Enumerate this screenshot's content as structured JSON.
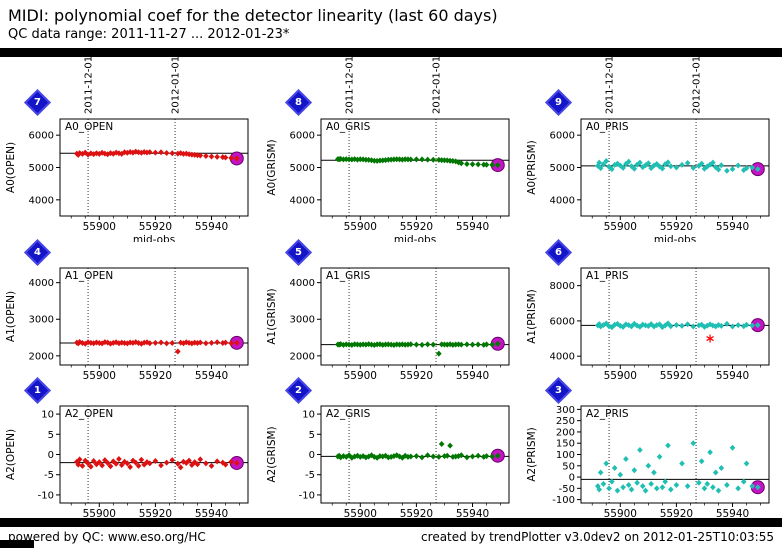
{
  "header": {
    "title": "MIDI: polynomial coef for the detector linearity (last 60 days)",
    "subtitle": "QC data range: 2011-11-27 ... 2012-01-23*"
  },
  "footer": {
    "left": "powered by QC: www.eso.org/HC",
    "right": "created by trendPlotter v3.0dev2 on 2012-01-25T10:03:55"
  },
  "colors": {
    "red": "#dd1111",
    "green": "#007700",
    "cyan": "#1fbfb4",
    "magenta": "#c214c2",
    "magenta_edge": "#6a006a",
    "outlier_red": "#ff0000",
    "badge_blue": "#1515c8"
  },
  "chart_data": {
    "type": "scatter",
    "xlabel_shared": "mjd-obs",
    "xlim": [
      55886,
      55953
    ],
    "x_ticks": [
      55900,
      55920,
      55940
    ],
    "date_lines": [
      {
        "mjd": 55896,
        "label": "2011-12-01"
      },
      {
        "mjd": 55927,
        "label": "2012-01-01"
      }
    ],
    "mjd": [
      55892,
      55892.5,
      55893,
      55894,
      55895,
      55896,
      55897,
      55898,
      55899,
      55900,
      55901,
      55902,
      55903,
      55904,
      55905,
      55906,
      55907,
      55908,
      55909,
      55910,
      55911,
      55912,
      55913,
      55914,
      55915,
      55916,
      55917,
      55918,
      55920,
      55922,
      55924,
      55926,
      55928,
      55929,
      55930,
      55931,
      55932,
      55933,
      55934,
      55935,
      55936,
      55938,
      55940,
      55942,
      55944,
      55945,
      55947,
      55949
    ],
    "plots": [
      {
        "badge": "7",
        "title": "A0_OPEN",
        "ylabel": "A0(OPEN)",
        "xlabel": "mjd-obs",
        "color": "red",
        "ylim": [
          3500,
          6500
        ],
        "yticks": [
          4000,
          5000,
          6000
        ],
        "fit": 5440,
        "values": [
          5430,
          5390,
          5445,
          5420,
          5460,
          5400,
          5435,
          5415,
          5440,
          5420,
          5455,
          5430,
          5410,
          5445,
          5425,
          5460,
          5440,
          5420,
          5470,
          5455,
          5480,
          5460,
          5490,
          5470,
          5455,
          5480,
          5465,
          5475,
          5460,
          5470,
          5450,
          5440,
          5430,
          5445,
          5420,
          5430,
          5410,
          5400,
          5390,
          5380,
          5370,
          5355,
          5340,
          5330,
          5320,
          5310,
          5295,
          5280
        ],
        "outliers": []
      },
      {
        "badge": "8",
        "title": "A0_GRIS",
        "ylabel": "A0(GRISM)",
        "xlabel": "mjd-obs",
        "color": "green",
        "ylim": [
          3500,
          6500
        ],
        "yticks": [
          4000,
          5000,
          6000
        ],
        "fit": 5225,
        "values": [
          5260,
          5255,
          5265,
          5250,
          5258,
          5252,
          5248,
          5260,
          5245,
          5255,
          5250,
          5240,
          5235,
          5225,
          5210,
          5205,
          5215,
          5220,
          5230,
          5240,
          5245,
          5250,
          5255,
          5250,
          5245,
          5255,
          5250,
          5248,
          5252,
          5250,
          5245,
          5240,
          5235,
          5230,
          5225,
          5220,
          5210,
          5200,
          5190,
          5160,
          5130,
          5110,
          5100,
          5095,
          5090,
          5085,
          5080,
          5075
        ],
        "outliers": []
      },
      {
        "badge": "9",
        "title": "A0_PRIS",
        "ylabel": "A0(PRISM)",
        "xlabel": "mjd-obs",
        "color": "cyan",
        "ylim": [
          3500,
          6500
        ],
        "yticks": [
          4000,
          5000,
          6000
        ],
        "fit": 5050,
        "values": [
          5050,
          5150,
          4980,
          5100,
          5200,
          5020,
          4950,
          5080,
          5120,
          5060,
          4990,
          5110,
          5180,
          5040,
          4960,
          5090,
          5150,
          5010,
          5070,
          5130,
          4980,
          5060,
          5110,
          5030,
          4970,
          5100,
          5160,
          5040,
          5000,
          5080,
          5140,
          4990,
          5050,
          5120,
          4960,
          5030,
          5090,
          5150,
          5010,
          4940,
          5070,
          4900,
          4950,
          5060,
          4920,
          4980,
          5000,
          4950
        ],
        "outliers": []
      },
      {
        "badge": "4",
        "title": "A1_OPEN",
        "ylabel": "A1(OPEN)",
        "xlabel": "",
        "color": "red",
        "ylim": [
          1750,
          4400
        ],
        "yticks": [
          2000,
          3000,
          4000
        ],
        "fit": 2352,
        "values": [
          2360,
          2340,
          2380,
          2350,
          2330,
          2370,
          2355,
          2345,
          2365,
          2350,
          2340,
          2375,
          2360,
          2335,
          2355,
          2370,
          2345,
          2360,
          2350,
          2340,
          2365,
          2355,
          2375,
          2350,
          2330,
          2360,
          2370,
          2345,
          2355,
          2365,
          2340,
          2350,
          2120,
          2360,
          2345,
          2370,
          2355,
          2340,
          2360,
          2350,
          2365,
          2345,
          2355,
          2370,
          2350,
          2360,
          2345,
          2355
        ],
        "outliers": []
      },
      {
        "badge": "5",
        "title": "A1_GRIS",
        "ylabel": "A1(GRISM)",
        "xlabel": "",
        "color": "green",
        "ylim": [
          1750,
          4400
        ],
        "yticks": [
          2000,
          3000,
          4000
        ],
        "fit": 2308,
        "values": [
          2310,
          2305,
          2320,
          2300,
          2315,
          2308,
          2295,
          2318,
          2310,
          2302,
          2315,
          2308,
          2320,
          2305,
          2298,
          2312,
          2318,
          2300,
          2310,
          2315,
          2305,
          2298,
          2312,
          2308,
          2315,
          2302,
          2310,
          2318,
          2305,
          2300,
          2312,
          2308,
          2060,
          2315,
          2310,
          2305,
          2318,
          2300,
          2310,
          2312,
          2305,
          2315,
          2308,
          2310,
          2300,
          2312,
          2308,
          2330
        ],
        "outliers": []
      },
      {
        "badge": "6",
        "title": "A1_PRIS",
        "ylabel": "A1(PRISM)",
        "xlabel": "",
        "color": "cyan",
        "ylim": [
          3500,
          9000
        ],
        "yticks": [
          4000,
          6000,
          8000
        ],
        "fit": 5750,
        "values": [
          5750,
          5820,
          5680,
          5770,
          5850,
          5700,
          5640,
          5780,
          5830,
          5720,
          5660,
          5800,
          5760,
          5690,
          5840,
          5730,
          5670,
          5790,
          5750,
          5710,
          5820,
          5680,
          5760,
          5800,
          5650,
          5740,
          5860,
          5700,
          5770,
          5720,
          5810,
          5680,
          5750,
          5790,
          5660,
          5730,
          5800,
          5740,
          5690,
          5770,
          5720,
          5830,
          5680,
          5760,
          5700,
          5780,
          5740,
          5760
        ],
        "outliers": [
          {
            "mjd": 55932,
            "value": 5000,
            "marker": "asterisk",
            "color": "outlier_red"
          }
        ]
      },
      {
        "badge": "1",
        "title": "A2_OPEN",
        "ylabel": "A2(OPEN)",
        "xlabel": "",
        "color": "red",
        "ylim": [
          -12,
          12
        ],
        "yticks": [
          -10,
          -5,
          0,
          5,
          10
        ],
        "fit": -2.0,
        "values": [
          -1.8,
          -2.5,
          -1.2,
          -2.8,
          -1.5,
          -2.2,
          -3.0,
          -1.6,
          -2.4,
          -1.9,
          -2.7,
          -1.4,
          -2.1,
          -2.9,
          -1.7,
          -2.3,
          -1.1,
          -2.6,
          -1.8,
          -2.2,
          -3.1,
          -1.5,
          -2.0,
          -2.8,
          -1.3,
          -2.5,
          -1.9,
          -2.2,
          -1.6,
          -2.7,
          -2.0,
          -1.4,
          -2.3,
          -3.2,
          -1.8,
          -2.1,
          -1.5,
          -2.6,
          -1.9,
          -2.4,
          -1.2,
          -2.2,
          -2.8,
          -1.7,
          -2.0,
          -2.5,
          -1.8,
          -2.1
        ],
        "outliers": []
      },
      {
        "badge": "2",
        "title": "A2_GRIS",
        "ylabel": "A2(GRISM)",
        "xlabel": "",
        "color": "green",
        "ylim": [
          -12,
          12
        ],
        "yticks": [
          -10,
          -5,
          0,
          5,
          10
        ],
        "fit": -0.45,
        "values": [
          -0.5,
          -0.3,
          -0.7,
          -0.4,
          -0.6,
          -0.2,
          -0.8,
          -0.5,
          -0.3,
          -0.6,
          -0.4,
          -0.7,
          -0.5,
          -0.2,
          -0.6,
          -0.8,
          -0.4,
          -0.5,
          -0.3,
          -0.7,
          -0.6,
          -0.4,
          -0.2,
          -0.5,
          -0.8,
          -0.3,
          -0.6,
          -0.5,
          -0.4,
          -0.7,
          -0.2,
          -0.5,
          -0.6,
          2.6,
          -0.4,
          -0.3,
          2.2,
          -0.6,
          -0.5,
          -0.4,
          -0.2,
          -0.7,
          -0.5,
          -0.3,
          -0.6,
          -0.4,
          -0.5,
          -0.3
        ],
        "outliers": []
      },
      {
        "badge": "3",
        "title": "A2_PRIS",
        "ylabel": "A2(PRISM)",
        "xlabel": "",
        "color": "cyan",
        "ylim": [
          -115,
          315
        ],
        "yticks": [
          -100,
          -50,
          0,
          50,
          100,
          150,
          200,
          250,
          300
        ],
        "fit": -10,
        "values": [
          -40,
          -55,
          20,
          -30,
          60,
          -50,
          -20,
          40,
          -60,
          10,
          -45,
          80,
          -35,
          -55,
          30,
          -25,
          120,
          -40,
          -60,
          50,
          -30,
          20,
          -50,
          90,
          -45,
          -20,
          140,
          -55,
          -35,
          60,
          -40,
          150,
          -25,
          70,
          -50,
          -30,
          110,
          -45,
          20,
          -60,
          40,
          -35,
          130,
          -50,
          -20,
          60,
          -40,
          -45
        ],
        "outliers": []
      }
    ]
  }
}
